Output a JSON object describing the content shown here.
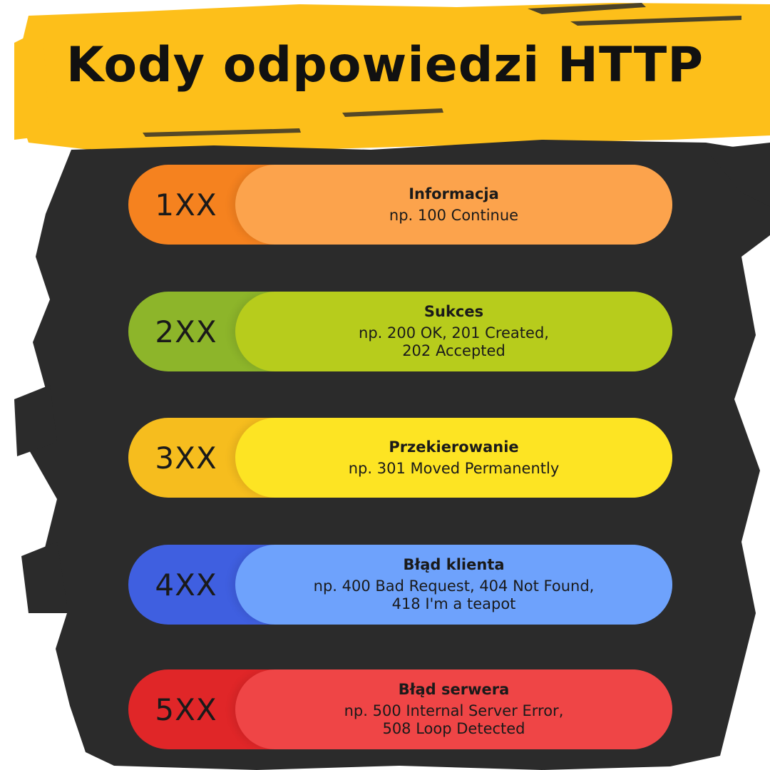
{
  "title": "Kody odpowiedzi HTTP",
  "colors": {
    "banner": "#fdbf1a",
    "brush": "#2b2b2b"
  },
  "groups": [
    {
      "code": "1XX",
      "name": "Informacja",
      "example": "np. 100 Continue",
      "left_color": "#f5821f",
      "pill_color": "#fca34c"
    },
    {
      "code": "2XX",
      "name": "Sukces",
      "example": "np. 200 OK, 201 Created,\n202 Accepted",
      "left_color": "#8db52a",
      "pill_color": "#b7cc1c"
    },
    {
      "code": "3XX",
      "name": "Przekierowanie",
      "example": "np. 301 Moved Permanently",
      "left_color": "#f6bd1e",
      "pill_color": "#fde423"
    },
    {
      "code": "4XX",
      "name": "Błąd klienta",
      "example": "np. 400 Bad Request, 404 Not Found,\n418 I'm a teapot",
      "left_color": "#3f5fe0",
      "pill_color": "#6ea2fc"
    },
    {
      "code": "5XX",
      "name": "Błąd serwera",
      "example": "np. 500 Internal Server Error,\n508 Loop Detected",
      "left_color": "#e02628",
      "pill_color": "#ef4546"
    }
  ]
}
